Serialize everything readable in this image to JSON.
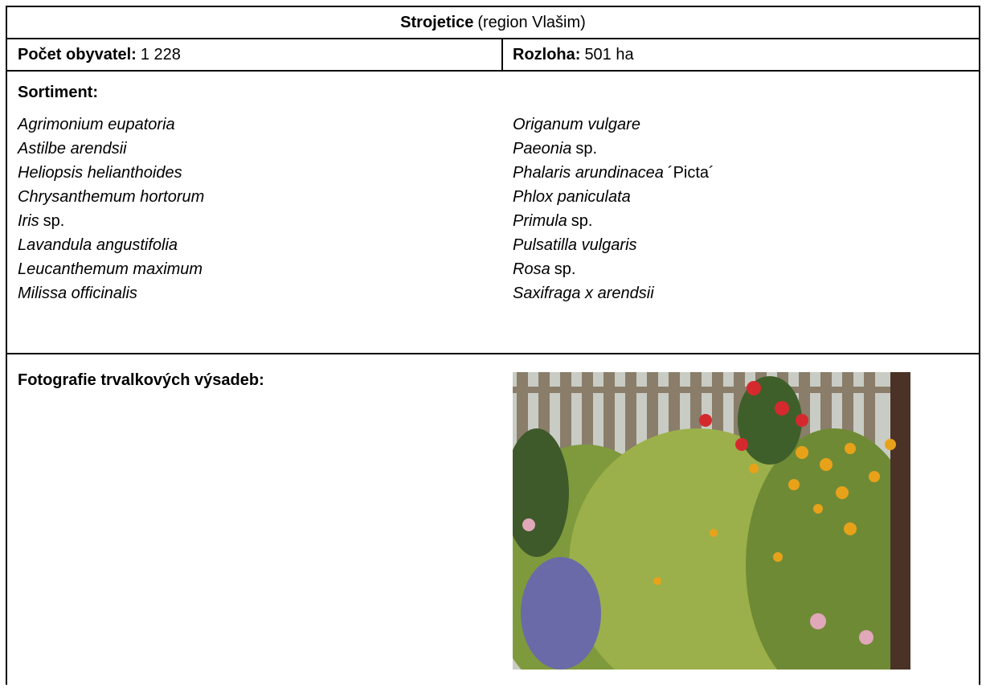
{
  "header": {
    "title": {
      "name": "Strojetice",
      "region": "(region Vlašim)"
    }
  },
  "info": {
    "population": {
      "label": "Počet obyvatel:",
      "value": "1 228"
    },
    "area": {
      "label": "Rozloha:",
      "value": "501 ha"
    }
  },
  "sortiment": {
    "label": "Sortiment:",
    "left": [
      {
        "italic": "Agrimonium eupatoria"
      },
      {
        "italic": "Astilbe arendsii"
      },
      {
        "italic": "Heliopsis helianthoides"
      },
      {
        "italic": "Chrysanthemum hortorum"
      },
      {
        "italic": "Iris",
        "plain": "sp."
      },
      {
        "italic": "Lavandula angustifolia"
      },
      {
        "italic": "Leucanthemum maximum"
      },
      {
        "italic": "Milissa officinalis"
      }
    ],
    "right": [
      {
        "italic": "Origanum vulgare"
      },
      {
        "italic": "Paeonia",
        "plain": "sp."
      },
      {
        "italic": "Phalaris arundinacea",
        "plain": "´Picta´"
      },
      {
        "italic": "Phlox paniculata"
      },
      {
        "italic": "Primula",
        "plain": "sp."
      },
      {
        "italic": "Pulsatilla vulgaris"
      },
      {
        "italic": "Rosa",
        "plain": "sp."
      },
      {
        "italic": "Saxifraga x arendsii"
      }
    ]
  },
  "photos": {
    "label": "Fotografie trvalkových výsadeb:"
  }
}
